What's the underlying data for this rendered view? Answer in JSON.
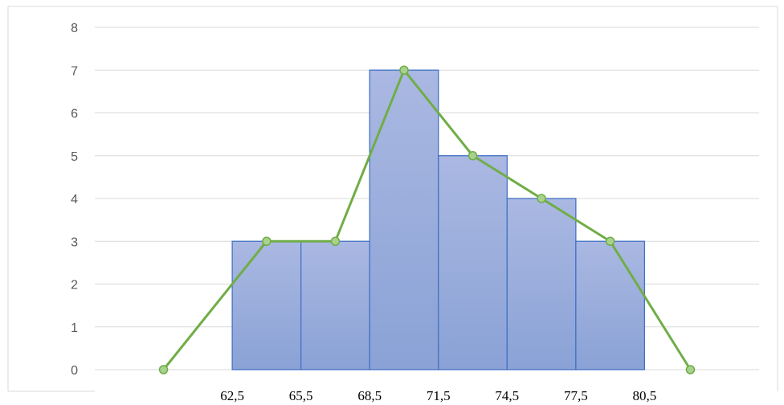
{
  "chart_data": {
    "type": "bar",
    "subtype": "histogram-with-frequency-polygon",
    "x_tick_labels": [
      "62,5",
      "65,5",
      "68,5",
      "71,5",
      "74,5",
      "77,5",
      "80,5"
    ],
    "bars": [
      {
        "from": "62,5",
        "to": "65,5",
        "value": 3
      },
      {
        "from": "65,5",
        "to": "68,5",
        "value": 3
      },
      {
        "from": "68,5",
        "to": "71,5",
        "value": 7
      },
      {
        "from": "71,5",
        "to": "74,5",
        "value": 5
      },
      {
        "from": "74,5",
        "to": "77,5",
        "value": 4
      },
      {
        "from": "77,5",
        "to": "80,5",
        "value": 3
      }
    ],
    "polygon": {
      "x": [
        59.5,
        64,
        67,
        70,
        73,
        76,
        79,
        82.5
      ],
      "y": [
        0,
        3,
        3,
        7,
        5,
        4,
        3,
        0
      ]
    },
    "x_range": [
      56.5,
      85.5
    ],
    "ylim": [
      0,
      8
    ],
    "y_ticks": [
      "0",
      "1",
      "2",
      "3",
      "4",
      "5",
      "6",
      "7",
      "8"
    ],
    "grid": true,
    "legend": "none",
    "title": "",
    "xlabel": "",
    "ylabel": "",
    "colors": {
      "bar_fill_top": "#aab8e2",
      "bar_fill_bottom": "#8aa2d6",
      "bar_border": "#4472c4",
      "line": "#70ad47",
      "marker_fill": "#a9d18e",
      "marker_border": "#70ad47",
      "grid": "#d9d9d9",
      "tick_text": "#595959"
    }
  }
}
